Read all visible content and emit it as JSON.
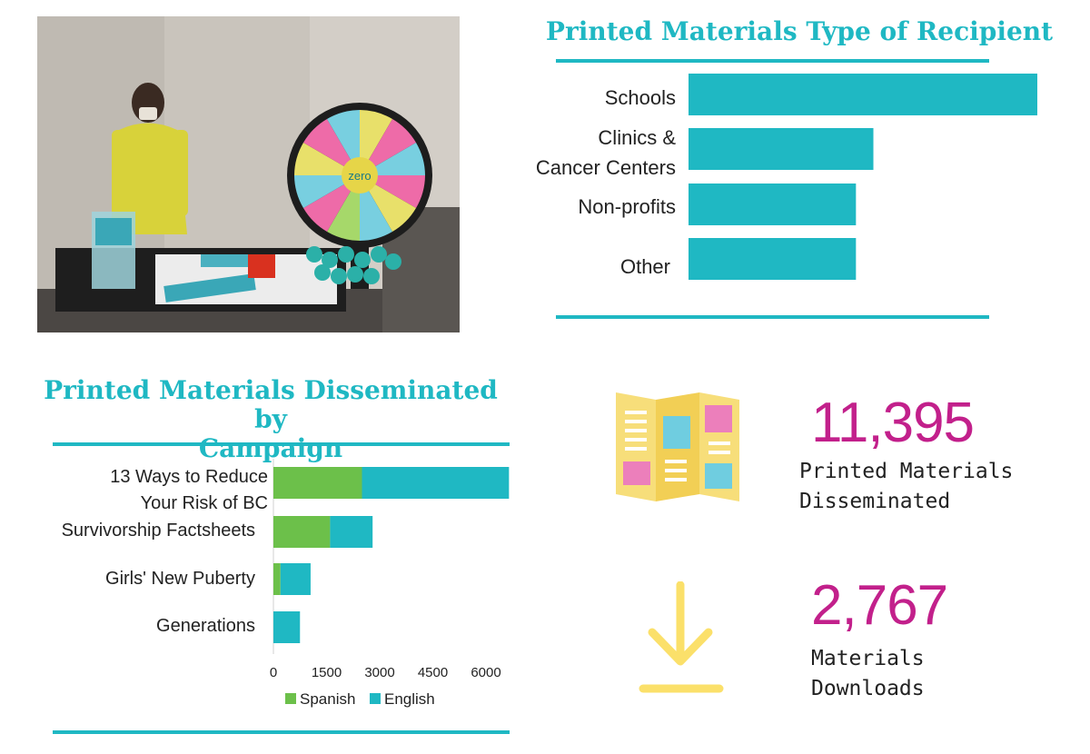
{
  "photo": {
    "description_icon": "booth-photo-icon",
    "wheel_hub_text": "zero"
  },
  "recipient_chart": {
    "title": "Printed Materials Type of Recipient",
    "chart_data": {
      "type": "bar",
      "orientation": "horizontal",
      "title": "Printed Materials Type of Recipient",
      "categories": [
        "Schools",
        "Clinics & Cancer Centers",
        "Non-profits",
        "Other"
      ],
      "category_lines": [
        [
          "Schools"
        ],
        [
          "Clinics &",
          "Cancer Centers"
        ],
        [
          "Non-profits"
        ],
        [
          "Other"
        ]
      ],
      "values": [
        100,
        53,
        48,
        48
      ],
      "color": "#1fb8c3",
      "axis_visible": false
    }
  },
  "campaign_chart": {
    "title_line1": "Printed Materials Disseminated by",
    "title_line2": "Campaign",
    "chart_data": {
      "type": "bar",
      "orientation": "horizontal",
      "stacked": true,
      "title": "Printed Materials Disseminated by Campaign",
      "categories": [
        "13 Ways to Reduce Your Risk of BC",
        "Survivorship Factsheets",
        "Girls' New Puberty",
        "Generations"
      ],
      "category_lines": [
        [
          "13 Ways to Reduce",
          "Your Risk of BC"
        ],
        [
          "Survivorship Factsheets"
        ],
        [
          "Girls' New Puberty"
        ],
        [
          "Generations"
        ]
      ],
      "series": [
        {
          "name": "Spanish",
          "color": "#6cc04a",
          "values": [
            2500,
            1600,
            200,
            0
          ]
        },
        {
          "name": "English",
          "color": "#1fb8c3",
          "values": [
            4150,
            1200,
            850,
            750
          ]
        }
      ],
      "xlim": [
        0,
        6000
      ],
      "xticks": [
        0,
        1500,
        3000,
        4500,
        6000
      ],
      "legend": "bottom"
    }
  },
  "stats": {
    "printed": {
      "value": "11,395",
      "label_line1": "Printed Materials",
      "label_line2": "Disseminated",
      "icon": "brochure-icon"
    },
    "downloads": {
      "value": "2,767",
      "label_line1": "Materials",
      "label_line2": "Downloads",
      "icon": "download-icon"
    }
  }
}
